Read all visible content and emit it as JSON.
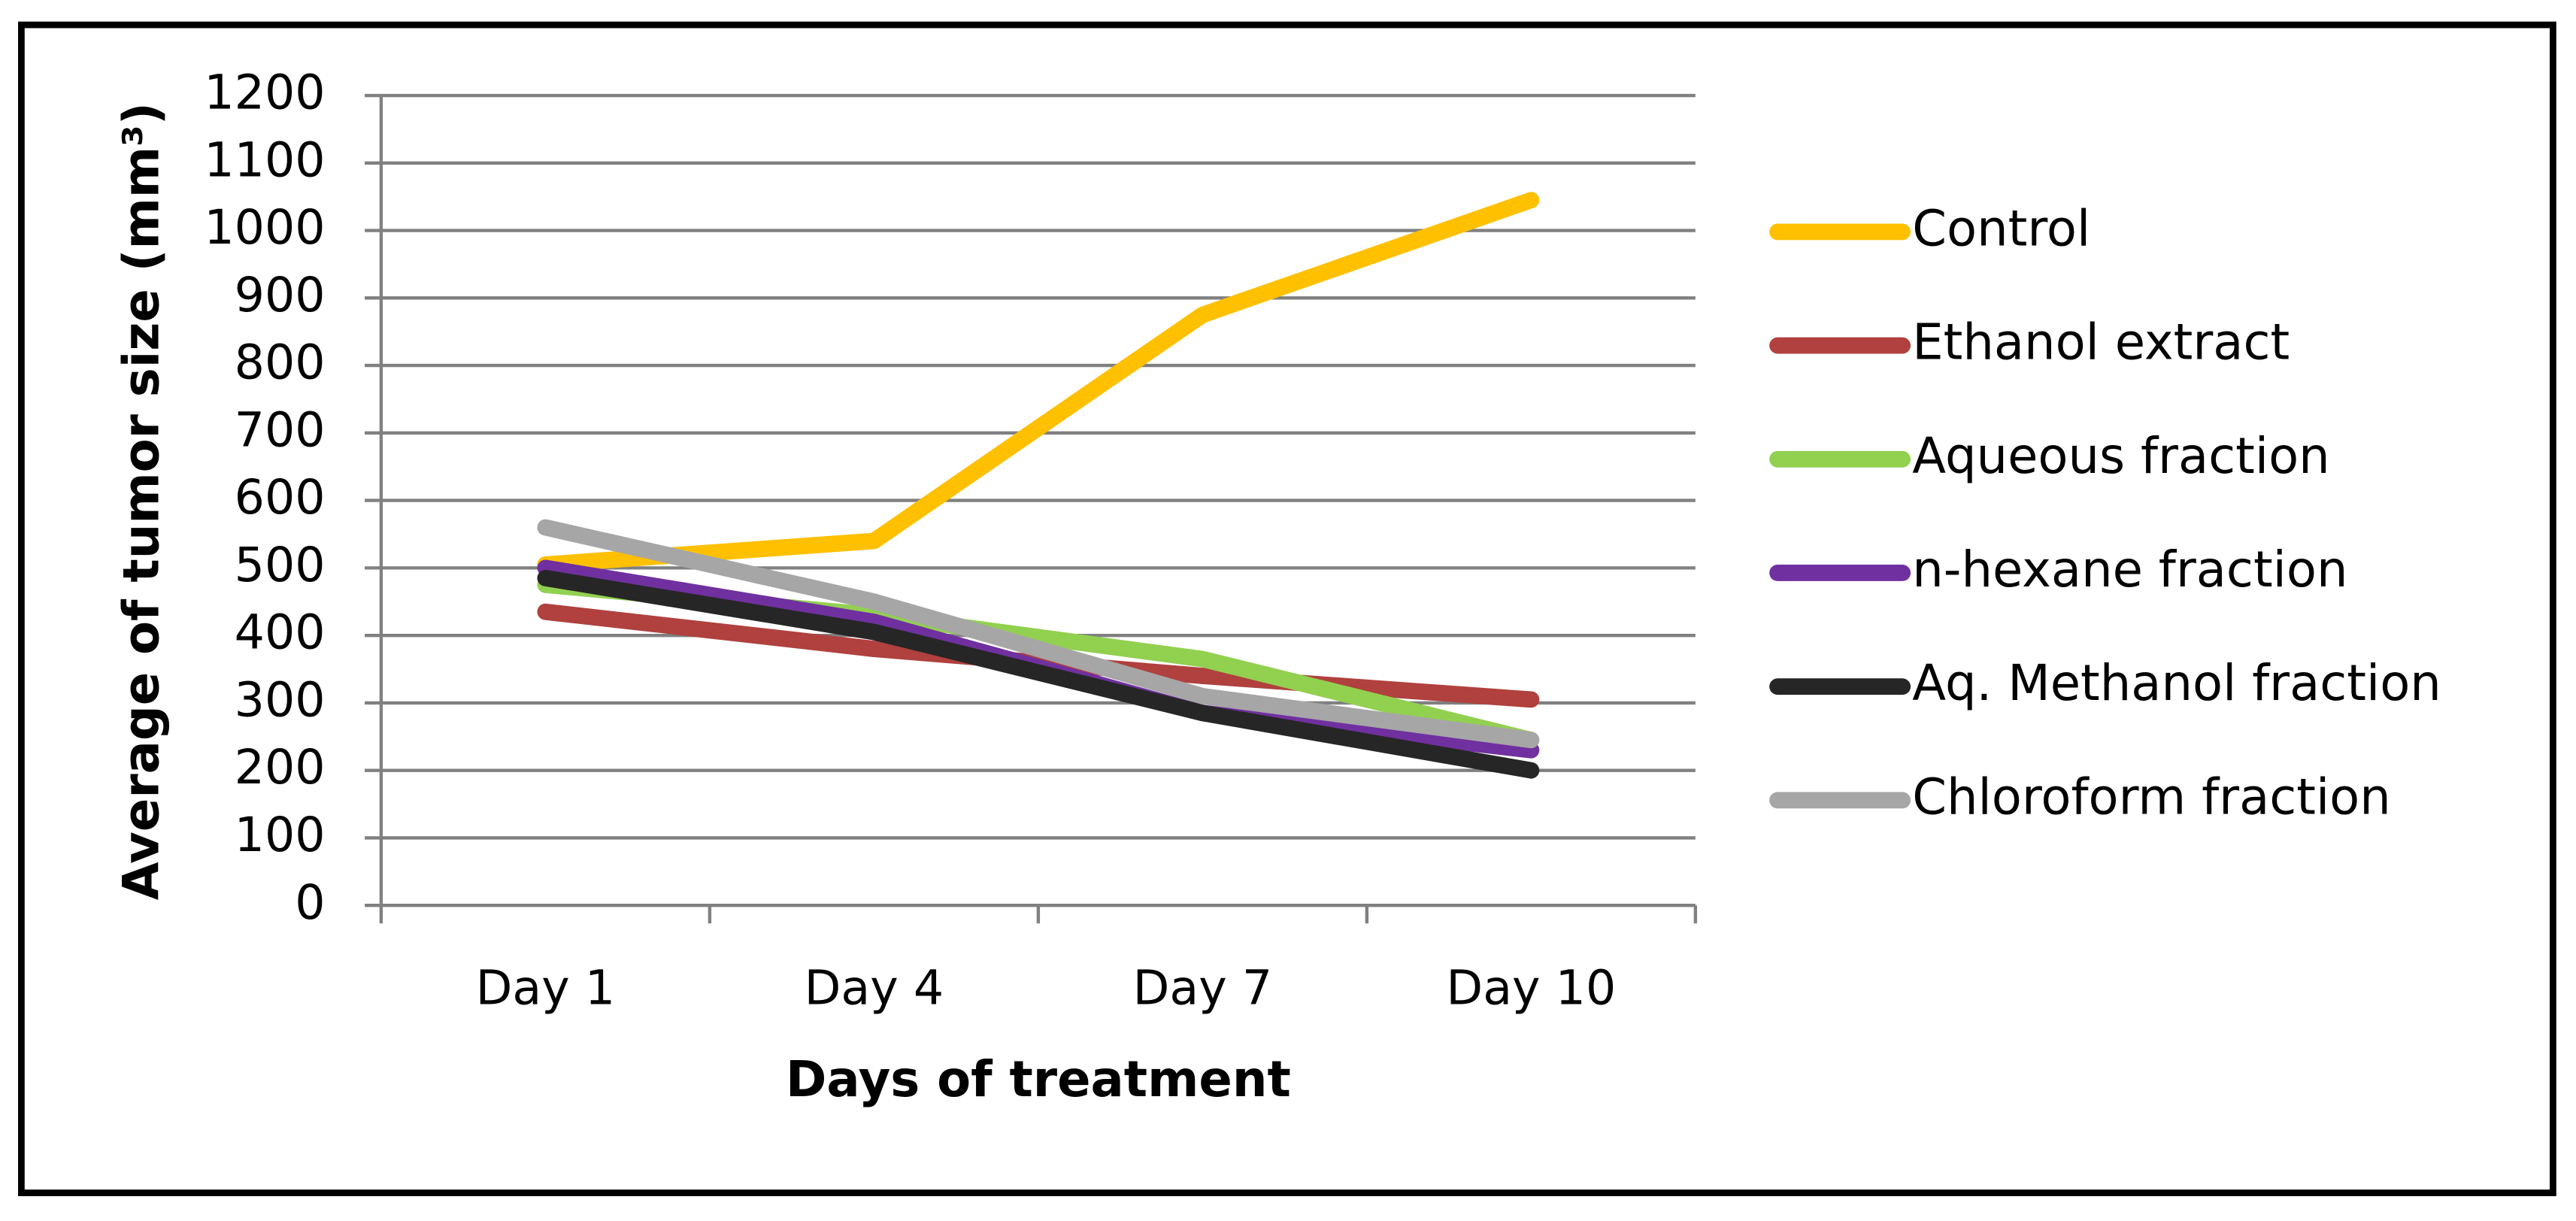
{
  "chart_data": {
    "type": "line",
    "x_label": "Days of treatment",
    "y_label": "Average of tumor size (mm³)",
    "categories": [
      "Day 1",
      "Day 4",
      "Day 7",
      "Day 10"
    ],
    "ylim": [
      0,
      1200
    ],
    "yticks": [
      0,
      100,
      200,
      300,
      400,
      500,
      600,
      700,
      800,
      900,
      1000,
      1100,
      1200
    ],
    "grid": true,
    "legend": "right",
    "series": [
      {
        "name": "Control",
        "color": "#FFC000",
        "values": [
          505,
          540,
          875,
          1045
        ]
      },
      {
        "name": "Ethanol extract",
        "color": "#B0413E",
        "values": [
          435,
          380,
          340,
          305
        ]
      },
      {
        "name": "Aqueous fraction",
        "color": "#92D050",
        "values": [
          475,
          430,
          365,
          245
        ]
      },
      {
        "name": "n-hexane fraction",
        "color": "#7030A0",
        "values": [
          500,
          420,
          285,
          230
        ]
      },
      {
        "name": "Aq. Methanol fraction",
        "color": "#262626",
        "values": [
          485,
          405,
          285,
          200
        ]
      },
      {
        "name": "Chloroform fraction",
        "color": "#A6A6A6",
        "values": [
          560,
          450,
          310,
          245
        ]
      }
    ]
  }
}
